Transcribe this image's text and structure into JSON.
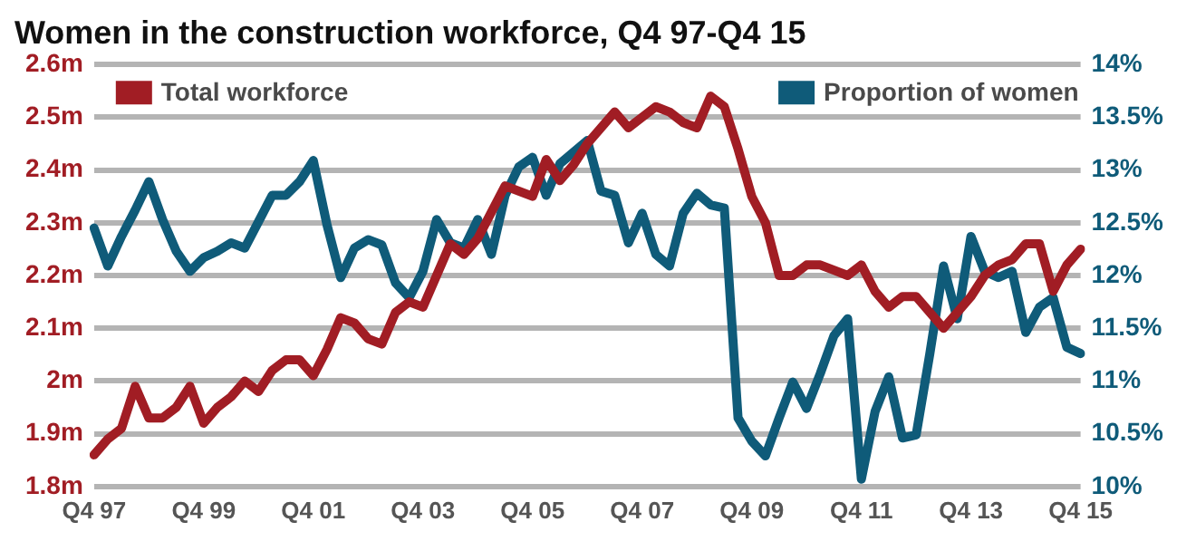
{
  "chart_data": {
    "type": "line",
    "title": "Women in the construction workforce, Q4 97-Q4 15",
    "categories": [
      "Q4 97",
      null,
      null,
      null,
      null,
      null,
      null,
      null,
      "Q4 99",
      null,
      null,
      null,
      null,
      null,
      null,
      null,
      "Q4 01",
      null,
      null,
      null,
      null,
      null,
      null,
      null,
      "Q4 03",
      null,
      null,
      null,
      null,
      null,
      null,
      null,
      "Q4 05",
      null,
      null,
      null,
      null,
      null,
      null,
      null,
      "Q4 07",
      null,
      null,
      null,
      null,
      null,
      null,
      null,
      "Q4 09",
      null,
      null,
      null,
      null,
      null,
      null,
      null,
      "Q4 11",
      null,
      null,
      null,
      null,
      null,
      null,
      null,
      "Q4 13",
      null,
      null,
      null,
      null,
      null,
      null,
      null,
      "Q4 15"
    ],
    "series": [
      {
        "name": "Total workforce",
        "color": "#a11d24",
        "values": [
          1.86,
          1.89,
          1.91,
          1.99,
          1.93,
          1.93,
          1.95,
          1.99,
          1.92,
          1.95,
          1.97,
          2.0,
          1.98,
          2.02,
          2.04,
          2.04,
          2.01,
          2.06,
          2.12,
          2.11,
          2.08,
          2.07,
          2.13,
          2.15,
          2.14,
          2.2,
          2.26,
          2.24,
          2.27,
          2.32,
          2.37,
          2.36,
          2.35,
          2.42,
          2.38,
          2.41,
          2.45,
          2.48,
          2.51,
          2.48,
          2.5,
          2.52,
          2.51,
          2.49,
          2.48,
          2.54,
          2.52,
          2.44,
          2.35,
          2.3,
          2.2,
          2.2,
          2.22,
          2.22,
          2.21,
          2.2,
          2.22,
          2.17,
          2.14,
          2.16,
          2.16,
          2.13,
          2.1,
          2.13,
          2.16,
          2.2,
          2.22,
          2.23,
          2.26,
          2.26,
          2.17,
          2.22,
          2.25
        ]
      },
      {
        "name": "Proportion of women",
        "color": "#0f5b79",
        "axis": "y2",
        "values": [
          12.45,
          12.09,
          12.37,
          12.62,
          12.89,
          12.53,
          12.23,
          12.04,
          12.17,
          12.23,
          12.31,
          12.26,
          12.51,
          12.76,
          12.76,
          12.89,
          13.09,
          12.48,
          11.98,
          12.26,
          12.34,
          12.29,
          11.93,
          11.79,
          12.04,
          12.53,
          12.31,
          12.26,
          12.53,
          12.2,
          12.76,
          13.03,
          13.12,
          12.76,
          13.06,
          13.17,
          13.28,
          12.8,
          12.76,
          12.31,
          12.59,
          12.2,
          12.09,
          12.59,
          12.78,
          12.67,
          12.64,
          10.65,
          10.43,
          10.29,
          10.65,
          10.99,
          10.74,
          11.07,
          11.43,
          11.59,
          10.07,
          10.71,
          11.04,
          10.46,
          10.49,
          11.26,
          12.09,
          11.59,
          12.37,
          12.04,
          11.98,
          12.04,
          11.46,
          11.7,
          11.79,
          11.32,
          11.26
        ]
      }
    ],
    "ylim": [
      1.8,
      2.6
    ],
    "yticks": [
      {
        "value": 1.8,
        "label": "1.8m"
      },
      {
        "value": 1.9,
        "label": "1.9m"
      },
      {
        "value": 2,
        "label": "2m"
      },
      {
        "value": 2.1,
        "label": "2.1m"
      },
      {
        "value": 2.2,
        "label": "2.2m"
      },
      {
        "value": 2.3,
        "label": "2.3m"
      },
      {
        "value": 2.4,
        "label": "2.4m"
      },
      {
        "value": 2.5,
        "label": "2.5m"
      },
      {
        "value": 2.6,
        "label": "2.6m"
      }
    ],
    "y2lim": [
      10,
      14
    ],
    "y2ticks": [
      {
        "value": 10,
        "label": "10%"
      },
      {
        "value": 10.5,
        "label": "10.5%"
      },
      {
        "value": 11,
        "label": "11%"
      },
      {
        "value": 11.5,
        "label": "11.5%"
      },
      {
        "value": 12,
        "label": "12%"
      },
      {
        "value": 12.5,
        "label": "12.5%"
      },
      {
        "value": 13,
        "label": "13%"
      },
      {
        "value": 13.5,
        "label": "13.5%"
      },
      {
        "value": 14,
        "label": "14%"
      }
    ],
    "grid": "y",
    "legend": "top",
    "marker": "none",
    "line_style": "solid"
  }
}
